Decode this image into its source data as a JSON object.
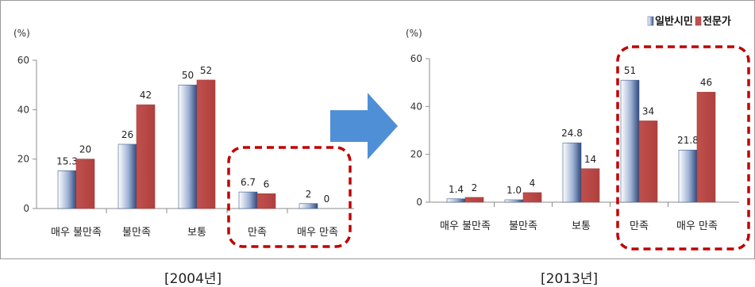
{
  "legend": {
    "items": [
      {
        "name": "일반시민",
        "color": "#3f5a8e"
      },
      {
        "name": "전문가",
        "color": "#c0504d"
      }
    ],
    "placement": "top-right"
  },
  "arrow": {
    "color": "#4f8fd6",
    "direction": "right"
  },
  "highlight": {
    "color": "#c00000",
    "style": "dashed"
  },
  "captions": {
    "left": "[2004년]",
    "right": "[2013년]"
  },
  "chart_data": [
    {
      "type": "bar",
      "title": "",
      "unit_label": "(%)",
      "categories": [
        "매우 불만족",
        "불만족",
        "보통",
        "만족",
        "매우 만족"
      ],
      "series": [
        {
          "name": "일반시민",
          "values": [
            15.3,
            26,
            50,
            6.7,
            2
          ],
          "labels": [
            "15.3",
            "26",
            "50",
            "6.7",
            "2"
          ]
        },
        {
          "name": "전문가",
          "values": [
            20,
            42,
            52,
            6,
            0
          ],
          "labels": [
            "20",
            "42",
            "52",
            "6",
            "0"
          ]
        }
      ],
      "ylim": [
        0,
        60
      ],
      "yticks": [
        "0",
        "20",
        "40",
        "60"
      ],
      "highlighted_categories": [
        3,
        4
      ],
      "grid": false
    },
    {
      "type": "bar",
      "title": "",
      "unit_label": "(%)",
      "categories": [
        "매우 불만족",
        "불만족",
        "보통",
        "만족",
        "매우 만족"
      ],
      "series": [
        {
          "name": "일반시민",
          "values": [
            1.4,
            1.0,
            24.8,
            51,
            21.8
          ],
          "labels": [
            "1.4",
            "1.0",
            "24.8",
            "51",
            "21.8"
          ]
        },
        {
          "name": "전문가",
          "values": [
            2,
            4,
            14,
            34,
            46
          ],
          "labels": [
            "2",
            "4",
            "14",
            "34",
            "46"
          ]
        }
      ],
      "ylim": [
        0,
        60
      ],
      "yticks": [
        "0",
        "20",
        "40",
        "60"
      ],
      "highlighted_categories": [
        3,
        4
      ],
      "grid": false
    }
  ]
}
